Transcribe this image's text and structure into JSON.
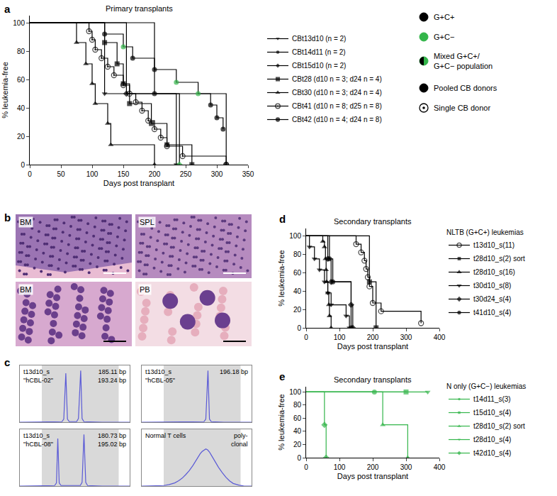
{
  "chart_data": [
    {
      "panel": "a",
      "type": "line",
      "title": "Primary transplants",
      "x_label": "Days post transplant",
      "y_label": "% leukemia-free",
      "xlim": [
        0,
        350
      ],
      "xticks": [
        0,
        50,
        100,
        150,
        200,
        250,
        300,
        350
      ],
      "ylim": [
        0,
        105
      ],
      "yticks": [
        0,
        20,
        40,
        60,
        80,
        100
      ],
      "line_style": "step",
      "legend": "right",
      "series": [
        {
          "name": "CBt13d10 (n = 2)",
          "marker": "triangle-down",
          "color": "#000000",
          "x": [
            0,
            120,
            235
          ],
          "values": [
            100,
            50,
            0
          ]
        },
        {
          "name": "CBt14d11 (n = 2)",
          "marker": "circle",
          "color": "#000000",
          "x": [
            0,
            200,
            315
          ],
          "values": [
            100,
            50,
            0
          ]
        },
        {
          "name": "CBt15d10 (n = 2)",
          "marker": "diamond",
          "color": "#000000",
          "colors": [
            "#000000",
            "#000000",
            "#33b54a"
          ],
          "x": [
            0,
            155,
            240
          ],
          "values": [
            100,
            50,
            0
          ]
        },
        {
          "name": "CBt28 (d10 n = 3; d24 n = 4)",
          "marker": "square",
          "color": "#000000",
          "x": [
            0,
            120,
            140,
            150,
            160,
            195,
            220,
            260
          ],
          "values": [
            100,
            86,
            71,
            57,
            43,
            29,
            14,
            0
          ]
        },
        {
          "name": "CBt30 (d10 n = 3; d24 n = 4)",
          "marker": "triangle-up",
          "color": "#000000",
          "x": [
            0,
            75,
            90,
            100,
            105,
            125,
            130,
            200
          ],
          "values": [
            100,
            86,
            71,
            57,
            43,
            29,
            14,
            0
          ]
        },
        {
          "name": "CBt41 (d10 n = 8; d25 n = 8)",
          "marker": "circle-dot",
          "color": "#000000",
          "x": [
            0,
            95,
            100,
            105,
            115,
            125,
            135,
            150,
            160,
            170,
            180,
            190,
            200,
            210,
            220,
            245,
            315
          ],
          "values": [
            100,
            94,
            88,
            81,
            75,
            69,
            63,
            56,
            50,
            44,
            38,
            31,
            25,
            19,
            13,
            6,
            0
          ]
        },
        {
          "name": "CBt42 (d10 n = 4; d24 n = 8)",
          "marker": "circle",
          "color": "#000000",
          "colors": [
            "#000000",
            "#000000",
            "#33b54a",
            "#000000",
            "#000000",
            "#33b54a",
            "#33b54a",
            "#000000",
            "#000000",
            "#000000"
          ],
          "x": [
            0,
            120,
            150,
            165,
            200,
            235,
            270,
            290,
            300,
            310
          ],
          "values": [
            100,
            92,
            83,
            75,
            67,
            58,
            50,
            42,
            33,
            25
          ]
        }
      ],
      "key": [
        {
          "label_lines": [
            "G+C+"
          ],
          "marker": "circle",
          "colors": [
            "#000000"
          ]
        },
        {
          "label_lines": [
            "G+C−"
          ],
          "marker": "circle",
          "colors": [
            "#33b54a"
          ]
        },
        {
          "label_lines": [
            "Mixed G+C+/",
            "G+C− population"
          ],
          "marker": "half",
          "colors": [
            "#000000",
            "#33b54a"
          ]
        },
        {
          "label_lines": [
            "Pooled CB donors"
          ],
          "marker": "circle",
          "colors": [
            "#000000"
          ]
        },
        {
          "label_lines": [
            "Single CB donor"
          ],
          "marker": "circle-dot",
          "colors": [
            "#000000"
          ]
        }
      ]
    },
    {
      "panel": "c",
      "type": "line",
      "title": "t13d10_s",
      "subtitle": "\"hCBL-02\"",
      "annotations": [
        "185.11 bp",
        "193.24 bp"
      ],
      "tick_labels": false,
      "xlim": [
        160,
        220
      ],
      "ylim": [
        0,
        110
      ],
      "band": [
        172,
        214
      ],
      "color": "#5a5ad6",
      "x": [
        160,
        178,
        183,
        184,
        185.11,
        186,
        187,
        191,
        192,
        193.24,
        194,
        195,
        205,
        220
      ],
      "values": [
        0,
        0,
        1,
        6,
        95,
        6,
        1,
        1,
        7,
        100,
        7,
        1,
        0,
        0
      ]
    },
    {
      "type": "line",
      "title": "t13d10_s",
      "subtitle": "\"hCBL-05\"",
      "annotations": [
        "196.18 bp"
      ],
      "tick_labels": false,
      "xlim": [
        160,
        220
      ],
      "ylim": [
        0,
        110
      ],
      "band": [
        172,
        214
      ],
      "color": "#5a5ad6",
      "x": [
        160,
        185,
        194,
        195,
        196.18,
        197,
        198,
        205,
        220
      ],
      "values": [
        0,
        0,
        1,
        6,
        100,
        6,
        1,
        0,
        0
      ]
    },
    {
      "type": "line",
      "title": "t13d10_s",
      "subtitle": "\"hCBL-08\"",
      "annotations": [
        "180.73 bp",
        "195.02 bp"
      ],
      "tick_labels": false,
      "xlim": [
        160,
        220
      ],
      "ylim": [
        0,
        110
      ],
      "band": [
        172,
        214
      ],
      "color": "#5a5ad6",
      "x": [
        160,
        175,
        179,
        180,
        180.73,
        181.5,
        182.5,
        193,
        194,
        195.02,
        196,
        197,
        205,
        220
      ],
      "values": [
        0,
        0,
        1,
        6,
        92,
        6,
        1,
        1,
        7,
        100,
        7,
        1,
        0,
        0
      ]
    },
    {
      "type": "line",
      "title": "Normal T cells",
      "annotations": [
        "poly-",
        "clonal"
      ],
      "tick_labels": false,
      "xlim": [
        160,
        220
      ],
      "ylim": [
        0,
        110
      ],
      "band": [
        172,
        214
      ],
      "color": "#5a5ad6",
      "x": [
        160,
        172,
        175,
        178,
        180,
        182,
        184,
        186,
        188,
        189,
        190,
        191,
        192,
        193,
        194,
        195,
        196,
        197,
        198,
        199,
        200,
        202,
        204,
        206,
        208,
        210,
        213,
        216,
        220
      ],
      "values": [
        0,
        1,
        3,
        6,
        10,
        15,
        22,
        30,
        40,
        46,
        52,
        58,
        63,
        67,
        70,
        72,
        70,
        66,
        60,
        54,
        47,
        36,
        26,
        17,
        10,
        5,
        2,
        0,
        0
      ]
    },
    {
      "panel": "d",
      "type": "line",
      "title": "Secondary transplants",
      "x_label": "Days post transplant",
      "y_label": "% leukemia-free",
      "xlim": [
        0,
        400
      ],
      "xticks": [
        0,
        100,
        200,
        300,
        400
      ],
      "ylim": [
        0,
        108
      ],
      "yticks": [
        0,
        20,
        40,
        60,
        80,
        100
      ],
      "line_style": "step",
      "legend": "right",
      "legend_title": "NLTB (G+C+) leukemias",
      "series": [
        {
          "name": "t13d10_s(11)",
          "marker": "circle-open",
          "color": "#000000",
          "x": [
            0,
            150,
            165,
            175,
            180,
            185,
            190,
            200,
            225,
            345
          ],
          "values": [
            100,
            91,
            82,
            73,
            64,
            55,
            45,
            27,
            18,
            5
          ]
        },
        {
          "name": "t28d10_s(2) sort",
          "marker": "square",
          "color": "#000000",
          "x": [
            0,
            190,
            210
          ],
          "values": [
            100,
            50,
            0
          ]
        },
        {
          "name": "t28d10_s(16)",
          "marker": "triangle-up",
          "color": "#000000",
          "x": [
            0,
            50,
            55,
            58,
            60,
            62,
            65,
            68,
            70,
            75
          ],
          "values": [
            100,
            94,
            88,
            75,
            63,
            50,
            38,
            25,
            13,
            0
          ]
        },
        {
          "name": "t30d10_s(8)",
          "marker": "triangle-down",
          "color": "#000000",
          "x": [
            0,
            10,
            25,
            40,
            55,
            65,
            75,
            120,
            130
          ],
          "values": [
            100,
            88,
            75,
            63,
            50,
            38,
            25,
            13,
            0
          ]
        },
        {
          "name": "t30d24_s(4)",
          "marker": "diamond",
          "color": "#000000",
          "x": [
            0,
            65,
            75,
            135,
            140
          ],
          "values": [
            100,
            75,
            50,
            25,
            0
          ]
        },
        {
          "name": "t41d10_s(4)",
          "marker": "circle",
          "color": "#000000",
          "x": [
            0,
            70,
            80,
            135
          ],
          "values": [
            100,
            75,
            50,
            0
          ]
        }
      ]
    },
    {
      "panel": "e",
      "type": "line",
      "title": "Secondary transplants",
      "x_label": "Days post transplant",
      "y_label": "% leukemia-free",
      "xlim": [
        0,
        400
      ],
      "xticks": [
        0,
        100,
        200,
        300,
        400
      ],
      "ylim": [
        0,
        108
      ],
      "yticks": [
        0,
        20,
        40,
        60,
        80,
        100
      ],
      "line_style": "step",
      "legend": "right",
      "legend_title": "N only (G+C−) leukemias",
      "series": [
        {
          "name": "t14d11_s(3)",
          "marker": "circle",
          "color": "#33b54a",
          "x": [
            0,
            205
          ],
          "values": [
            100,
            100
          ]
        },
        {
          "name": "t15d10_s(4)",
          "marker": "square",
          "color": "#33b54a",
          "x": [
            0,
            300
          ],
          "values": [
            100,
            100
          ]
        },
        {
          "name": "t28d10_s(2) sort",
          "marker": "triangle-up",
          "color": "#33b54a",
          "x": [
            0,
            230,
            305
          ],
          "values": [
            100,
            50,
            0
          ]
        },
        {
          "name": "t28d10_s(4)",
          "marker": "triangle-down",
          "color": "#33b54a",
          "x": [
            0,
            365
          ],
          "values": [
            100,
            100
          ]
        },
        {
          "name": "t42d10_s(4)",
          "marker": "diamond",
          "color": "#33b54a",
          "x": [
            0,
            55,
            60
          ],
          "values": [
            100,
            50,
            0
          ]
        }
      ]
    }
  ],
  "figure_b": {
    "panel": "b",
    "images": [
      {
        "label": "BM"
      },
      {
        "label": "SPL"
      },
      {
        "label": "BM"
      },
      {
        "label": "PB"
      }
    ]
  }
}
